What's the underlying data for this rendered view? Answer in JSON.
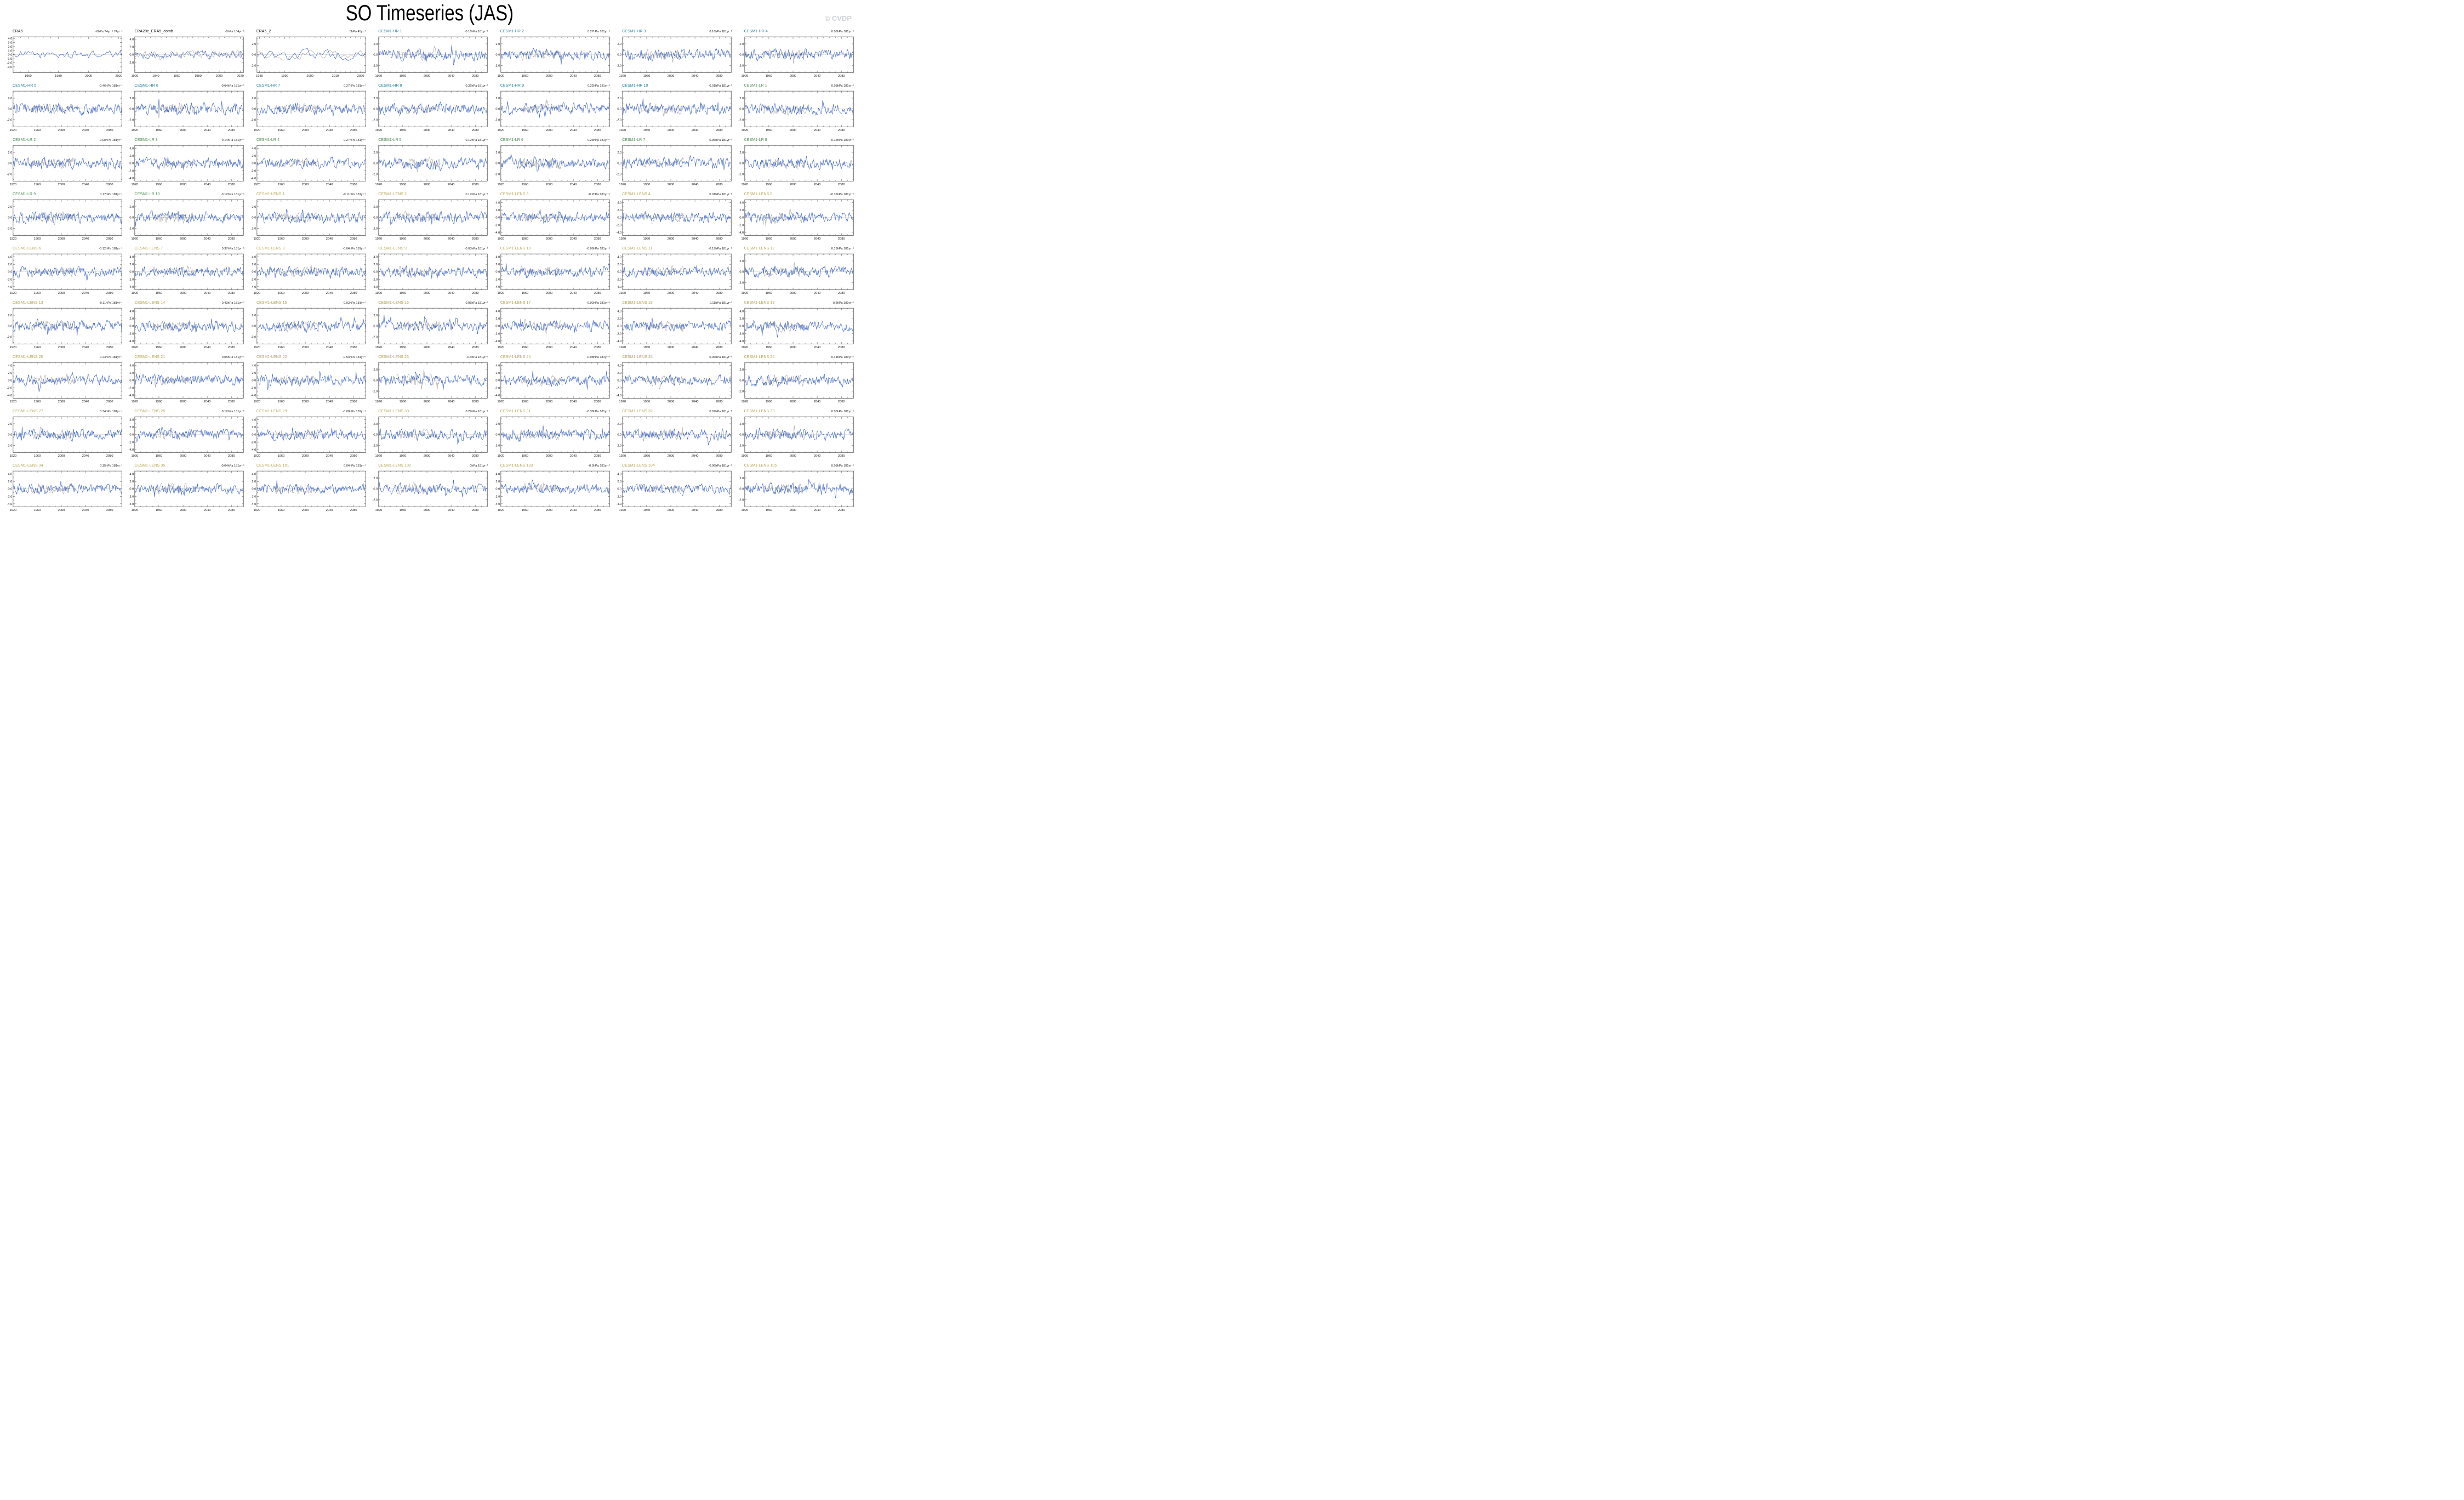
{
  "page": {
    "title": "SO Timeseries (JAS)",
    "logo": "© CVDP"
  },
  "colors": {
    "era_title": "#000000",
    "hr_title": "#1a7f9e",
    "lr_title": "#4e8b55",
    "lens_title": "#b3a453",
    "primary_line": "#4169c8",
    "observed_line": "#999999",
    "zero_line": "#c9c9c9",
    "frame": "#444444"
  },
  "chart_data": {
    "type": "line",
    "title": "SO Timeseries (JAS)",
    "units": "hPa",
    "legend_position": "none",
    "grid": false,
    "x_axes": {
      "era5": {
        "min": 1950,
        "max": 2022,
        "ticks": [
          1960,
          1980,
          2000,
          2020
        ],
        "minor": 5
      },
      "era20c": {
        "min": 1920,
        "max": 2023,
        "ticks": [
          1920,
          1940,
          1960,
          1980,
          2000,
          2020
        ],
        "minor": 5
      },
      "era5_2": {
        "min": 1979,
        "max": 2022,
        "ticks": [
          1980,
          1990,
          2000,
          2010,
          2020
        ],
        "minor": 2
      },
      "model": {
        "min": 1920,
        "max": 2100,
        "ticks": [
          1920,
          1960,
          2000,
          2040,
          2080
        ],
        "minor": 10
      }
    },
    "y_axes": {
      "era5": {
        "ticks": [
          -3,
          -2,
          -1,
          0,
          1,
          2,
          3,
          4
        ],
        "lim": 4.4,
        "amp": 1.0
      },
      "era20c": {
        "ticks": [
          -2,
          0,
          2,
          4
        ],
        "lim": 4.6,
        "amp": 1.0
      },
      "small": {
        "ticks": [
          -2,
          0,
          2
        ],
        "lim": 3.3,
        "amp": 1.0
      },
      "large": {
        "ticks": [
          -4,
          -2,
          0,
          2,
          4
        ],
        "lim": 4.8,
        "amp": 1.35
      }
    },
    "obs_window": {
      "x_min": 1950,
      "x_max": 2022
    },
    "panels": [
      {
        "title": "ERA5",
        "group": "era",
        "trend": "-0hPa 74yr⁻¹ 74yr⁻¹",
        "xaxis": "era5",
        "yaxis": "era5",
        "obs": "none"
      },
      {
        "title": "ERA20c_ERA5_comb",
        "group": "era",
        "trend": "-0hPa 104yr⁻¹",
        "xaxis": "era20c",
        "yaxis": "era20c",
        "obs": "full"
      },
      {
        "title": "ERA5_2",
        "group": "era",
        "trend": "0hPa 45yr⁻¹",
        "xaxis": "era5_2",
        "yaxis": "small",
        "obs": "full"
      },
      {
        "title": "CESM1-HR 1",
        "group": "hr",
        "trend": "-0.16hPa 181yr⁻¹",
        "xaxis": "model",
        "yaxis": "small",
        "obs": "window"
      },
      {
        "title": "CESM1-HR 2",
        "group": "hr",
        "trend": "0.27hPa 181yr⁻¹",
        "xaxis": "model",
        "yaxis": "small",
        "obs": "window"
      },
      {
        "title": "CESM1-HR 3",
        "group": "hr",
        "trend": "0.16hPa 181yr⁻¹",
        "xaxis": "model",
        "yaxis": "small",
        "obs": "window"
      },
      {
        "title": "CESM1-HR 4",
        "group": "hr",
        "trend": "0.08hPa 181yr⁻¹",
        "xaxis": "model",
        "yaxis": "small",
        "obs": "window"
      },
      {
        "title": "CESM1-HR 5",
        "group": "hr",
        "trend": "-0.46hPa 181yr⁻¹",
        "xaxis": "model",
        "yaxis": "small",
        "obs": "window"
      },
      {
        "title": "CESM1-HR 6",
        "group": "hr",
        "trend": "-0.04hPa 181yr⁻¹",
        "xaxis": "model",
        "yaxis": "small",
        "obs": "window"
      },
      {
        "title": "CESM1-HR 7",
        "group": "hr",
        "trend": "0.27hPa 181yr⁻¹",
        "xaxis": "model",
        "yaxis": "small",
        "obs": "window"
      },
      {
        "title": "CESM1-HR 8",
        "group": "hr",
        "trend": "-0.32hPa 181yr⁻¹",
        "xaxis": "model",
        "yaxis": "small",
        "obs": "window"
      },
      {
        "title": "CESM1-HR 9",
        "group": "hr",
        "trend": "0.22hPa 181yr⁻¹",
        "xaxis": "model",
        "yaxis": "small",
        "obs": "window"
      },
      {
        "title": "CESM1-HR 10",
        "group": "hr",
        "trend": "-0.01hPa 181yr⁻¹",
        "xaxis": "model",
        "yaxis": "small",
        "obs": "window"
      },
      {
        "title": "CESM1-LR 1",
        "group": "lr",
        "trend": "0.03hPa 181yr⁻¹",
        "xaxis": "model",
        "yaxis": "small",
        "obs": "window"
      },
      {
        "title": "CESM1-LR 2",
        "group": "lr",
        "trend": "-0.08hPa 181yr⁻¹",
        "xaxis": "model",
        "yaxis": "small",
        "obs": "window"
      },
      {
        "title": "CESM1-LR 3",
        "group": "lr",
        "trend": "0.14hPa 181yr⁻¹",
        "xaxis": "model",
        "yaxis": "large",
        "obs": "window"
      },
      {
        "title": "CESM1-LR 4",
        "group": "lr",
        "trend": "0.27hPa 181yr⁻¹",
        "xaxis": "model",
        "yaxis": "large",
        "obs": "window"
      },
      {
        "title": "CESM1-LR 5",
        "group": "lr",
        "trend": "-0.17hPa 181yr⁻¹",
        "xaxis": "model",
        "yaxis": "small",
        "obs": "window"
      },
      {
        "title": "CESM1-LR 6",
        "group": "lr",
        "trend": "0.23hPa 181yr⁻¹",
        "xaxis": "model",
        "yaxis": "small",
        "obs": "window"
      },
      {
        "title": "CESM1-LR 7",
        "group": "lr",
        "trend": "-0.35hPa 181yr⁻¹",
        "xaxis": "model",
        "yaxis": "small",
        "obs": "window"
      },
      {
        "title": "CESM1-LR 8",
        "group": "lr",
        "trend": "-0.12hPa 181yr⁻¹",
        "xaxis": "model",
        "yaxis": "small",
        "obs": "window"
      },
      {
        "title": "CESM1-LR 9",
        "group": "lr",
        "trend": "0.17hPa 181yr⁻¹",
        "xaxis": "model",
        "yaxis": "small",
        "obs": "window"
      },
      {
        "title": "CESM1-LR 10",
        "group": "lr",
        "trend": "-0.12hPa 181yr⁻¹",
        "xaxis": "model",
        "yaxis": "small",
        "obs": "window"
      },
      {
        "title": "CESM1-LENS 1",
        "group": "lens",
        "trend": "-0.11hPa 181yr⁻¹",
        "xaxis": "model",
        "yaxis": "small",
        "obs": "window"
      },
      {
        "title": "CESM1-LENS 2",
        "group": "lens",
        "trend": "0.17hPa 181yr⁻¹",
        "xaxis": "model",
        "yaxis": "small",
        "obs": "window"
      },
      {
        "title": "CESM1-LENS 3",
        "group": "lens",
        "trend": "-0.2hPa 181yr⁻¹",
        "xaxis": "model",
        "yaxis": "large",
        "obs": "window"
      },
      {
        "title": "CESM1-LENS 4",
        "group": "lens",
        "trend": "0.01hPa 181yr⁻¹",
        "xaxis": "model",
        "yaxis": "large",
        "obs": "window"
      },
      {
        "title": "CESM1-LENS 5",
        "group": "lens",
        "trend": "-0.16hPa 181yr⁻¹",
        "xaxis": "model",
        "yaxis": "large",
        "obs": "window"
      },
      {
        "title": "CESM1-LENS 6",
        "group": "lens",
        "trend": "-0.12hPa 181yr⁻¹",
        "xaxis": "model",
        "yaxis": "large",
        "obs": "window"
      },
      {
        "title": "CESM1-LENS 7",
        "group": "lens",
        "trend": "0.37hPa 181yr⁻¹",
        "xaxis": "model",
        "yaxis": "large",
        "obs": "window"
      },
      {
        "title": "CESM1-LENS 8",
        "group": "lens",
        "trend": "-0.04hPa 181yr⁻¹",
        "xaxis": "model",
        "yaxis": "large",
        "obs": "window"
      },
      {
        "title": "CESM1-LENS 9",
        "group": "lens",
        "trend": "-0.03hPa 181yr⁻¹",
        "xaxis": "model",
        "yaxis": "large",
        "obs": "window"
      },
      {
        "title": "CESM1-LENS 10",
        "group": "lens",
        "trend": "-0.06hPa 181yr⁻¹",
        "xaxis": "model",
        "yaxis": "large",
        "obs": "window"
      },
      {
        "title": "CESM1-LENS 11",
        "group": "lens",
        "trend": "-0.19hPa 181yr⁻¹",
        "xaxis": "model",
        "yaxis": "large",
        "obs": "window"
      },
      {
        "title": "CESM1-LENS 12",
        "group": "lens",
        "trend": "0.19hPa 181yr⁻¹",
        "xaxis": "model",
        "yaxis": "small",
        "obs": "window"
      },
      {
        "title": "CESM1-LENS 13",
        "group": "lens",
        "trend": "-0.11hPa 181yr⁻¹",
        "xaxis": "model",
        "yaxis": "small",
        "obs": "window"
      },
      {
        "title": "CESM1-LENS 14",
        "group": "lens",
        "trend": "0.43hPa 181yr⁻¹",
        "xaxis": "model",
        "yaxis": "large",
        "obs": "window"
      },
      {
        "title": "CESM1-LENS 15",
        "group": "lens",
        "trend": "-0.02hPa 181yr⁻¹",
        "xaxis": "model",
        "yaxis": "small",
        "obs": "window"
      },
      {
        "title": "CESM1-LENS 16",
        "group": "lens",
        "trend": "0.05hPa 181yr⁻¹",
        "xaxis": "model",
        "yaxis": "small",
        "obs": "window"
      },
      {
        "title": "CESM1-LENS 17",
        "group": "lens",
        "trend": "-0.02hPa 181yr⁻¹",
        "xaxis": "model",
        "yaxis": "large",
        "obs": "window"
      },
      {
        "title": "CESM1-LENS 18",
        "group": "lens",
        "trend": "-0.11hPa 181yr⁻¹",
        "xaxis": "model",
        "yaxis": "large",
        "obs": "window"
      },
      {
        "title": "CESM1-LENS 19",
        "group": "lens",
        "trend": "-0.2hPa 181yr⁻¹",
        "xaxis": "model",
        "yaxis": "large",
        "obs": "window"
      },
      {
        "title": "CESM1-LENS 20",
        "group": "lens",
        "trend": "0.23hPa 181yr⁻¹",
        "xaxis": "model",
        "yaxis": "large",
        "obs": "window"
      },
      {
        "title": "CESM1-LENS 21",
        "group": "lens",
        "trend": "0.05hPa 181yr⁻¹",
        "xaxis": "model",
        "yaxis": "large",
        "obs": "window"
      },
      {
        "title": "CESM1-LENS 22",
        "group": "lens",
        "trend": "-0.53hPa 181yr⁻¹",
        "xaxis": "model",
        "yaxis": "large",
        "obs": "window"
      },
      {
        "title": "CESM1-LENS 23",
        "group": "lens",
        "trend": "-0.3hPa 181yr⁻¹",
        "xaxis": "model",
        "yaxis": "small",
        "obs": "window"
      },
      {
        "title": "CESM1-LENS 24",
        "group": "lens",
        "trend": "-0.08hPa 181yr⁻¹",
        "xaxis": "model",
        "yaxis": "large",
        "obs": "window"
      },
      {
        "title": "CESM1-LENS 25",
        "group": "lens",
        "trend": "0.06hPa 181yr⁻¹",
        "xaxis": "model",
        "yaxis": "large",
        "obs": "window"
      },
      {
        "title": "CESM1-LENS 26",
        "group": "lens",
        "trend": "0.41hPa 181yr⁻¹",
        "xaxis": "model",
        "yaxis": "small",
        "obs": "window"
      },
      {
        "title": "CESM1-LENS 27",
        "group": "lens",
        "trend": "0.34hPa 181yr⁻¹",
        "xaxis": "model",
        "yaxis": "small",
        "obs": "window"
      },
      {
        "title": "CESM1-LENS 28",
        "group": "lens",
        "trend": "0.12hPa 181yr⁻¹",
        "xaxis": "model",
        "yaxis": "large",
        "obs": "window"
      },
      {
        "title": "CESM1-LENS 29",
        "group": "lens",
        "trend": "-0.08hPa 181yr⁻¹",
        "xaxis": "model",
        "yaxis": "large",
        "obs": "window"
      },
      {
        "title": "CESM1-LENS 30",
        "group": "lens",
        "trend": "0.29hPa 181yr⁻¹",
        "xaxis": "model",
        "yaxis": "small",
        "obs": "window"
      },
      {
        "title": "CESM1-LENS 31",
        "group": "lens",
        "trend": "-0.38hPa 181yr⁻¹",
        "xaxis": "model",
        "yaxis": "small",
        "obs": "window"
      },
      {
        "title": "CESM1-LENS 32",
        "group": "lens",
        "trend": "0.07hPa 181yr⁻¹",
        "xaxis": "model",
        "yaxis": "small",
        "obs": "window"
      },
      {
        "title": "CESM1-LENS 33",
        "group": "lens",
        "trend": "0.05hPa 181yr⁻¹",
        "xaxis": "model",
        "yaxis": "small",
        "obs": "window"
      },
      {
        "title": "CESM1-LENS 34",
        "group": "lens",
        "trend": "0.15hPa 181yr⁻¹",
        "xaxis": "model",
        "yaxis": "large",
        "obs": "window"
      },
      {
        "title": "CESM1-LENS 35",
        "group": "lens",
        "trend": "-0.04hPa 181yr⁻¹",
        "xaxis": "model",
        "yaxis": "large",
        "obs": "window"
      },
      {
        "title": "CESM1-LENS 101",
        "group": "lens",
        "trend": "0.04hPa 181yr⁻¹",
        "xaxis": "model",
        "yaxis": "large",
        "obs": "window"
      },
      {
        "title": "CESM1-LENS 102",
        "group": "lens",
        "trend": "0hPa 181yr⁻¹",
        "xaxis": "model",
        "yaxis": "small",
        "obs": "window"
      },
      {
        "title": "CESM1-LENS 103",
        "group": "lens",
        "trend": "-0.3hPa 181yr⁻¹",
        "xaxis": "model",
        "yaxis": "large",
        "obs": "window"
      },
      {
        "title": "CESM1-LENS 104",
        "group": "lens",
        "trend": "-0.06hPa 181yr⁻¹",
        "xaxis": "model",
        "yaxis": "large",
        "obs": "window"
      },
      {
        "title": "CESM1-LENS 105",
        "group": "lens",
        "trend": "0.08hPa 181yr⁻¹",
        "xaxis": "model",
        "yaxis": "small",
        "obs": "window"
      }
    ]
  }
}
